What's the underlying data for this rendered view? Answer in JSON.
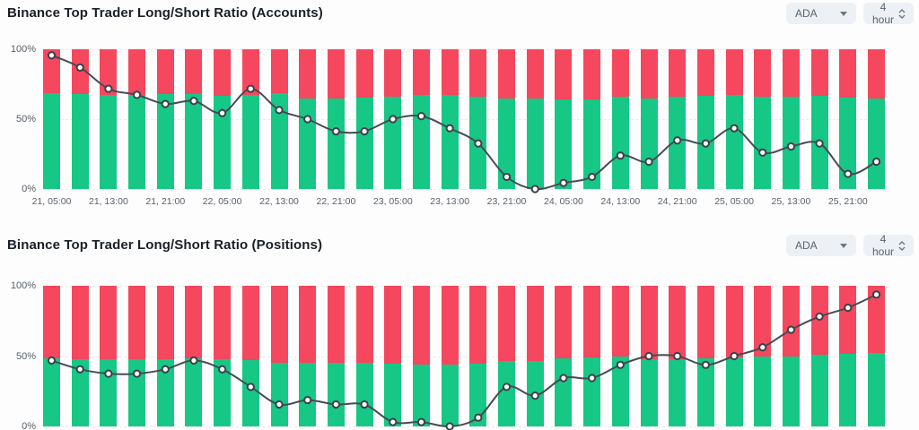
{
  "colors": {
    "long_green": "#17c785",
    "short_red": "#f5475d",
    "ratio_line": "#454b56",
    "marker_fill": "#ffffff",
    "marker_stroke": "#3c414b",
    "title_text": "#1b1f27",
    "axis_text": "#565d67",
    "control_bg": "#edf0f4"
  },
  "charts": [
    {
      "title": "Binance Top Trader Long/Short Ratio (Accounts)",
      "controls": {
        "coin": "ADA",
        "interval": "4 hour"
      }
    },
    {
      "title": "Binance Top Trader Long/Short Ratio (Positions)",
      "controls": {
        "coin": "ADA",
        "interval": "4 hour"
      }
    }
  ],
  "chart_data": [
    {
      "type": "bar",
      "subtype": "stacked-100pct-with-line-overlay",
      "title": "Binance Top Trader Long/Short Ratio (Accounts)",
      "grid": "dashed-horizontal",
      "legend": "none",
      "left_axis": {
        "tick_labels": [
          "100%",
          "50%",
          "0%"
        ],
        "tick_values": [
          100,
          50,
          0
        ],
        "min": 0,
        "max": 100
      },
      "right_axis": {
        "tick_values": [
          2.3,
          2.2,
          2.1,
          2.0,
          1.9,
          1.84
        ],
        "min": 1.84,
        "max": 2.3
      },
      "x_tick_labels": [
        "21, 05:00",
        "21, 13:00",
        "21, 21:00",
        "22, 05:00",
        "22, 13:00",
        "22, 21:00",
        "23, 05:00",
        "23, 13:00",
        "23, 21:00",
        "24, 05:00",
        "24, 13:00",
        "24, 21:00",
        "25, 05:00",
        "25, 13:00",
        "25, 21:00"
      ],
      "bars_per_x_tick": 2,
      "series": [
        {
          "name": "long-account-percent",
          "type": "bar",
          "axis": "left",
          "values": [
            68.5,
            68,
            67.5,
            67.5,
            68,
            68,
            66.5,
            67,
            68.5,
            65,
            65,
            65.5,
            66,
            67.5,
            67.5,
            66,
            64.5,
            64.5,
            64,
            64,
            66,
            65,
            66,
            66.5,
            67.5,
            66,
            66,
            66.5,
            65.5,
            64.5
          ]
        },
        {
          "name": "short-account-percent",
          "type": "bar",
          "axis": "left",
          "derived": "100 - long"
        },
        {
          "name": "long-short-ratio",
          "type": "line",
          "axis": "right",
          "smooth": true,
          "values": [
            2.28,
            2.24,
            2.17,
            2.15,
            2.12,
            2.13,
            2.09,
            2.17,
            2.1,
            2.07,
            2.03,
            2.03,
            2.07,
            2.08,
            2.04,
            1.99,
            1.88,
            1.84,
            1.86,
            1.88,
            1.95,
            1.93,
            2.0,
            1.99,
            2.04,
            1.96,
            1.98,
            1.99,
            1.89,
            1.93
          ]
        }
      ]
    },
    {
      "type": "bar",
      "subtype": "stacked-100pct-with-line-overlay",
      "title": "Binance Top Trader Long/Short Ratio (Positions)",
      "grid": "dashed-horizontal",
      "legend": "none",
      "left_axis": {
        "tick_labels": [
          "100%",
          "50%",
          "0%"
        ],
        "tick_values": [
          100,
          50,
          0
        ],
        "min": 0,
        "max": 100
      },
      "right_axis": {
        "tick_values": [
          1.15,
          1.1,
          1.05,
          1.0,
          0.95,
          0.9,
          0.85,
          0.83
        ],
        "min": 0.83,
        "max": 1.15
      },
      "x_tick_labels": [],
      "bars_per_x_tick": 2,
      "series": [
        {
          "name": "long-position-percent",
          "type": "bar",
          "axis": "left",
          "values": [
            48.5,
            48,
            47.5,
            47.5,
            48,
            48.5,
            48,
            47,
            45.5,
            45,
            45.5,
            45.5,
            44.5,
            44,
            44,
            44.5,
            46.5,
            46.5,
            48.5,
            49,
            49.5,
            48,
            48,
            48.5,
            49,
            49.5,
            50,
            51,
            51.5,
            52
          ]
        },
        {
          "name": "short-position-percent",
          "type": "bar",
          "axis": "left",
          "derived": "100 - long"
        },
        {
          "name": "long-short-ratio",
          "type": "line",
          "axis": "right",
          "smooth": true,
          "values": [
            0.98,
            0.96,
            0.95,
            0.95,
            0.96,
            0.98,
            0.96,
            0.92,
            0.88,
            0.89,
            0.88,
            0.88,
            0.84,
            0.84,
            0.83,
            0.85,
            0.92,
            0.9,
            0.94,
            0.94,
            0.97,
            0.99,
            0.99,
            0.97,
            0.99,
            1.01,
            1.05,
            1.08,
            1.1,
            1.13
          ]
        }
      ]
    }
  ]
}
